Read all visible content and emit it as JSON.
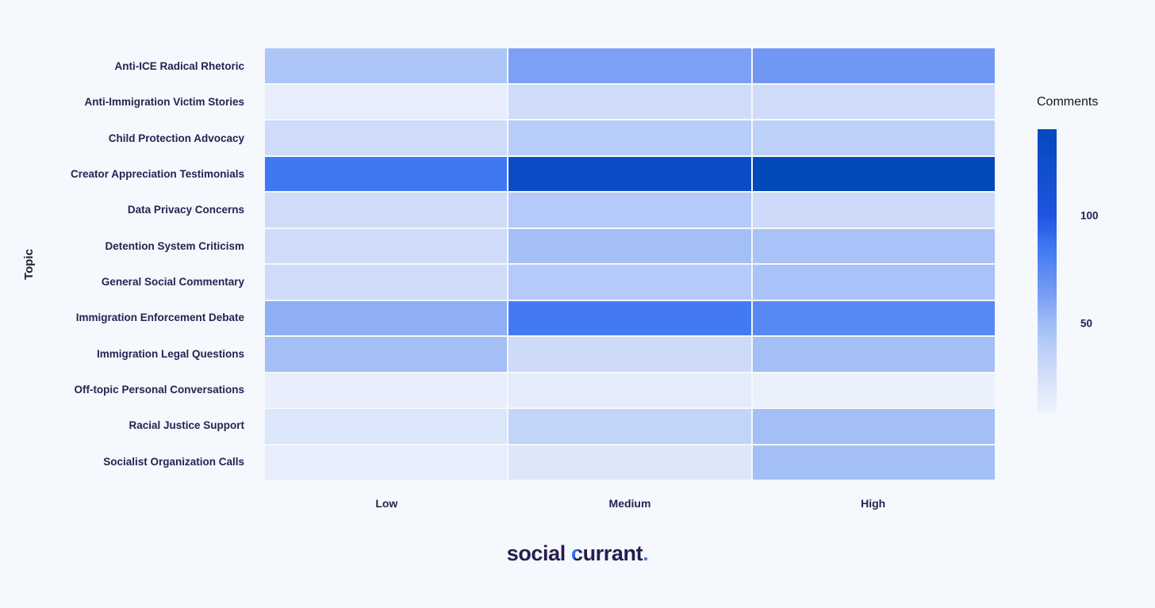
{
  "colors": {
    "background": "#f5f8fc",
    "axis_label": "#2b2153",
    "axis_title": "#1e1e2d",
    "legend_title_color": "#17171f",
    "logo_dark": "#251d4f",
    "logo_blue": "#2e6bf2"
  },
  "chart_data": {
    "type": "heatmap",
    "title": "",
    "xlabel": "",
    "ylabel": "Topic",
    "x_categories": [
      "Low",
      "Medium",
      "High"
    ],
    "y_categories": [
      "Anti-ICE Radical Rhetoric",
      "Anti-Immigration Victim Stories",
      "Child Protection Advocacy",
      "Creator Appreciation Testimonials",
      "Data Privacy Concerns",
      "Detention System Criticism",
      "General Social Commentary",
      "Immigration Enforcement Debate",
      "Immigration Legal Questions",
      "Off-topic Personal Conversations",
      "Racial Justice Support",
      "Socialist Organization Calls"
    ],
    "values": [
      [
        44,
        62,
        67
      ],
      [
        13,
        28,
        28
      ],
      [
        28,
        40,
        37
      ],
      [
        85,
        130,
        140
      ],
      [
        28,
        41,
        29
      ],
      [
        28,
        48,
        46
      ],
      [
        28,
        41,
        46
      ],
      [
        56,
        84,
        76
      ],
      [
        48,
        29,
        48
      ],
      [
        12,
        15,
        11
      ],
      [
        20,
        34,
        48
      ],
      [
        13,
        19,
        48
      ]
    ],
    "grid": "off",
    "legend_position": "right",
    "colorbar": {
      "title": "Comments",
      "min": 8,
      "max": 140,
      "ticks": [
        100,
        50
      ],
      "anchors": [
        [
          8,
          "#eef3fd"
        ],
        [
          15,
          "#e4ebfb"
        ],
        [
          20,
          "#dce6fa"
        ],
        [
          30,
          "#cbd9f9"
        ],
        [
          40,
          "#b7ccf8"
        ],
        [
          50,
          "#9fbcf6"
        ],
        [
          62,
          "#7ca0f3"
        ],
        [
          70,
          "#6792f3"
        ],
        [
          85,
          "#4078f3"
        ],
        [
          100,
          "#1d55e0"
        ],
        [
          140,
          "#0449bc"
        ]
      ]
    }
  },
  "footer": {
    "logo_part1": "social ",
    "logo_part2": "c",
    "logo_part3": "urrant",
    "logo_part4": "."
  }
}
